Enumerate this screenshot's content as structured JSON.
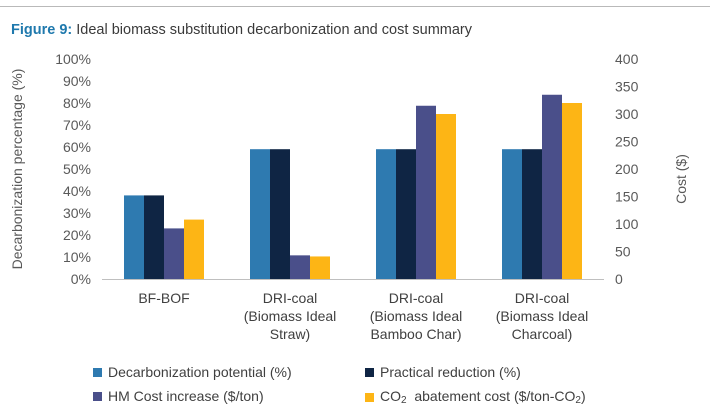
{
  "figure": {
    "label": "Figure 9:",
    "title": "Ideal biomass substitution decarbonization and cost summary"
  },
  "colors": {
    "decarb": "#2e7ab0",
    "practical": "#0f2544",
    "hm_cost": "#4a4f8a",
    "co2_cost": "#fdb515",
    "title_accent": "#1f79ad"
  },
  "chart_data": {
    "type": "bar",
    "categories": [
      [
        "BF-BOF"
      ],
      [
        "DRI-coal",
        "(Biomass Ideal",
        "Straw)"
      ],
      [
        "DRI-coal",
        "(Biomass Ideal",
        "Bamboo Char)"
      ],
      [
        "DRI-coal",
        "(Biomass Ideal",
        "Charcoal)"
      ]
    ],
    "series": [
      {
        "name": "Decarbonization potential (%)",
        "axis": "left",
        "values": [
          38,
          59,
          59,
          59
        ]
      },
      {
        "name": "Practical reduction (%)",
        "axis": "left",
        "values": [
          38,
          59,
          59,
          59
        ]
      },
      {
        "name": "HM Cost increase ($/ton)",
        "axis": "right",
        "values": [
          92,
          43,
          315,
          335
        ]
      },
      {
        "name": "CO2 abatement cost ($/ton-CO2)",
        "axis": "right",
        "values": [
          108,
          41,
          300,
          320
        ]
      }
    ],
    "ylabel_left": "Decarbonization percentage (%)",
    "ylabel_right": "Cost ($)",
    "ylim_left": [
      0,
      100
    ],
    "ylim_right": [
      0,
      400
    ],
    "yticks_left": [
      "0%",
      "10%",
      "20%",
      "30%",
      "40%",
      "50%",
      "60%",
      "70%",
      "80%",
      "90%",
      "100%"
    ],
    "yticks_right": [
      "0",
      "50",
      "100",
      "150",
      "200",
      "250",
      "300",
      "350",
      "400"
    ],
    "legend_position": "bottom",
    "grid": false
  },
  "legend": {
    "decarb": "Decarbonization potential (%)",
    "practical": "Practical reduction (%)",
    "hm_cost": "HM Cost increase ($/ton)",
    "co2_pre": "CO",
    "co2_sub": "2",
    "co2_mid": "  abatement cost ($/ton-CO",
    "co2_sub2": "2",
    "co2_post": ")"
  }
}
